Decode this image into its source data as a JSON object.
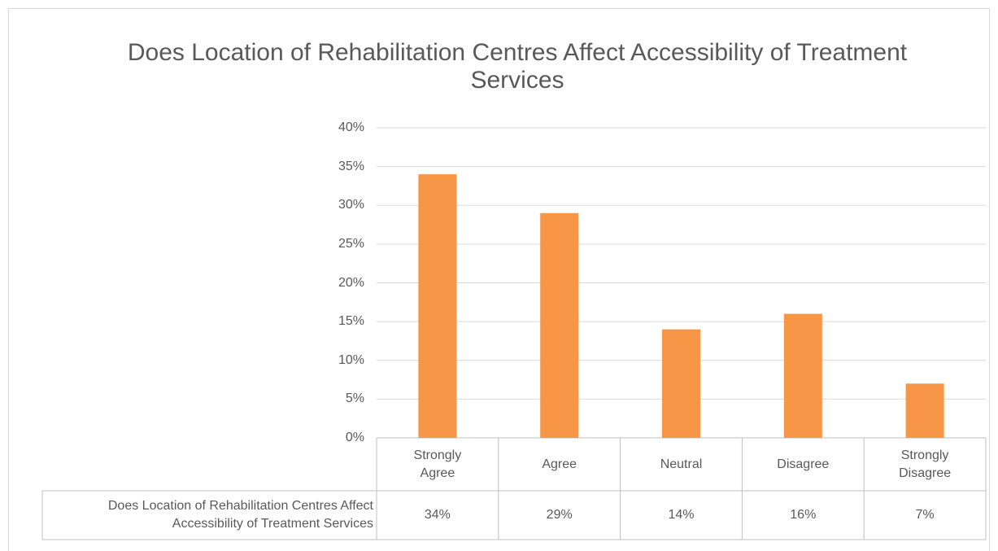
{
  "chart_data": {
    "type": "bar",
    "title": "Does Location of Rehabilitation Centres Affect Accessibility of Treatment Services",
    "categories": [
      "Strongly Agree",
      "Agree",
      "Neutral",
      "Disagree",
      "Strongly Disagree"
    ],
    "series": [
      {
        "name": "Does Location of Rehabilitation Centres Affect Accessibility of Treatment Services",
        "color": "#f79646",
        "values": [
          34,
          29,
          14,
          16,
          7
        ],
        "value_labels": [
          "34%",
          "29%",
          "14%",
          "16%",
          "7%"
        ]
      }
    ],
    "ylim": [
      0,
      40
    ],
    "yticks": [
      {
        "value": 0,
        "label": "0%"
      },
      {
        "value": 5,
        "label": "5%"
      },
      {
        "value": 10,
        "label": "10%"
      },
      {
        "value": 15,
        "label": "15%"
      },
      {
        "value": 20,
        "label": "20%"
      },
      {
        "value": 25,
        "label": "25%"
      },
      {
        "value": 30,
        "label": "30%"
      },
      {
        "value": 35,
        "label": "35%"
      },
      {
        "value": 40,
        "label": "40%"
      }
    ],
    "grid": true
  }
}
